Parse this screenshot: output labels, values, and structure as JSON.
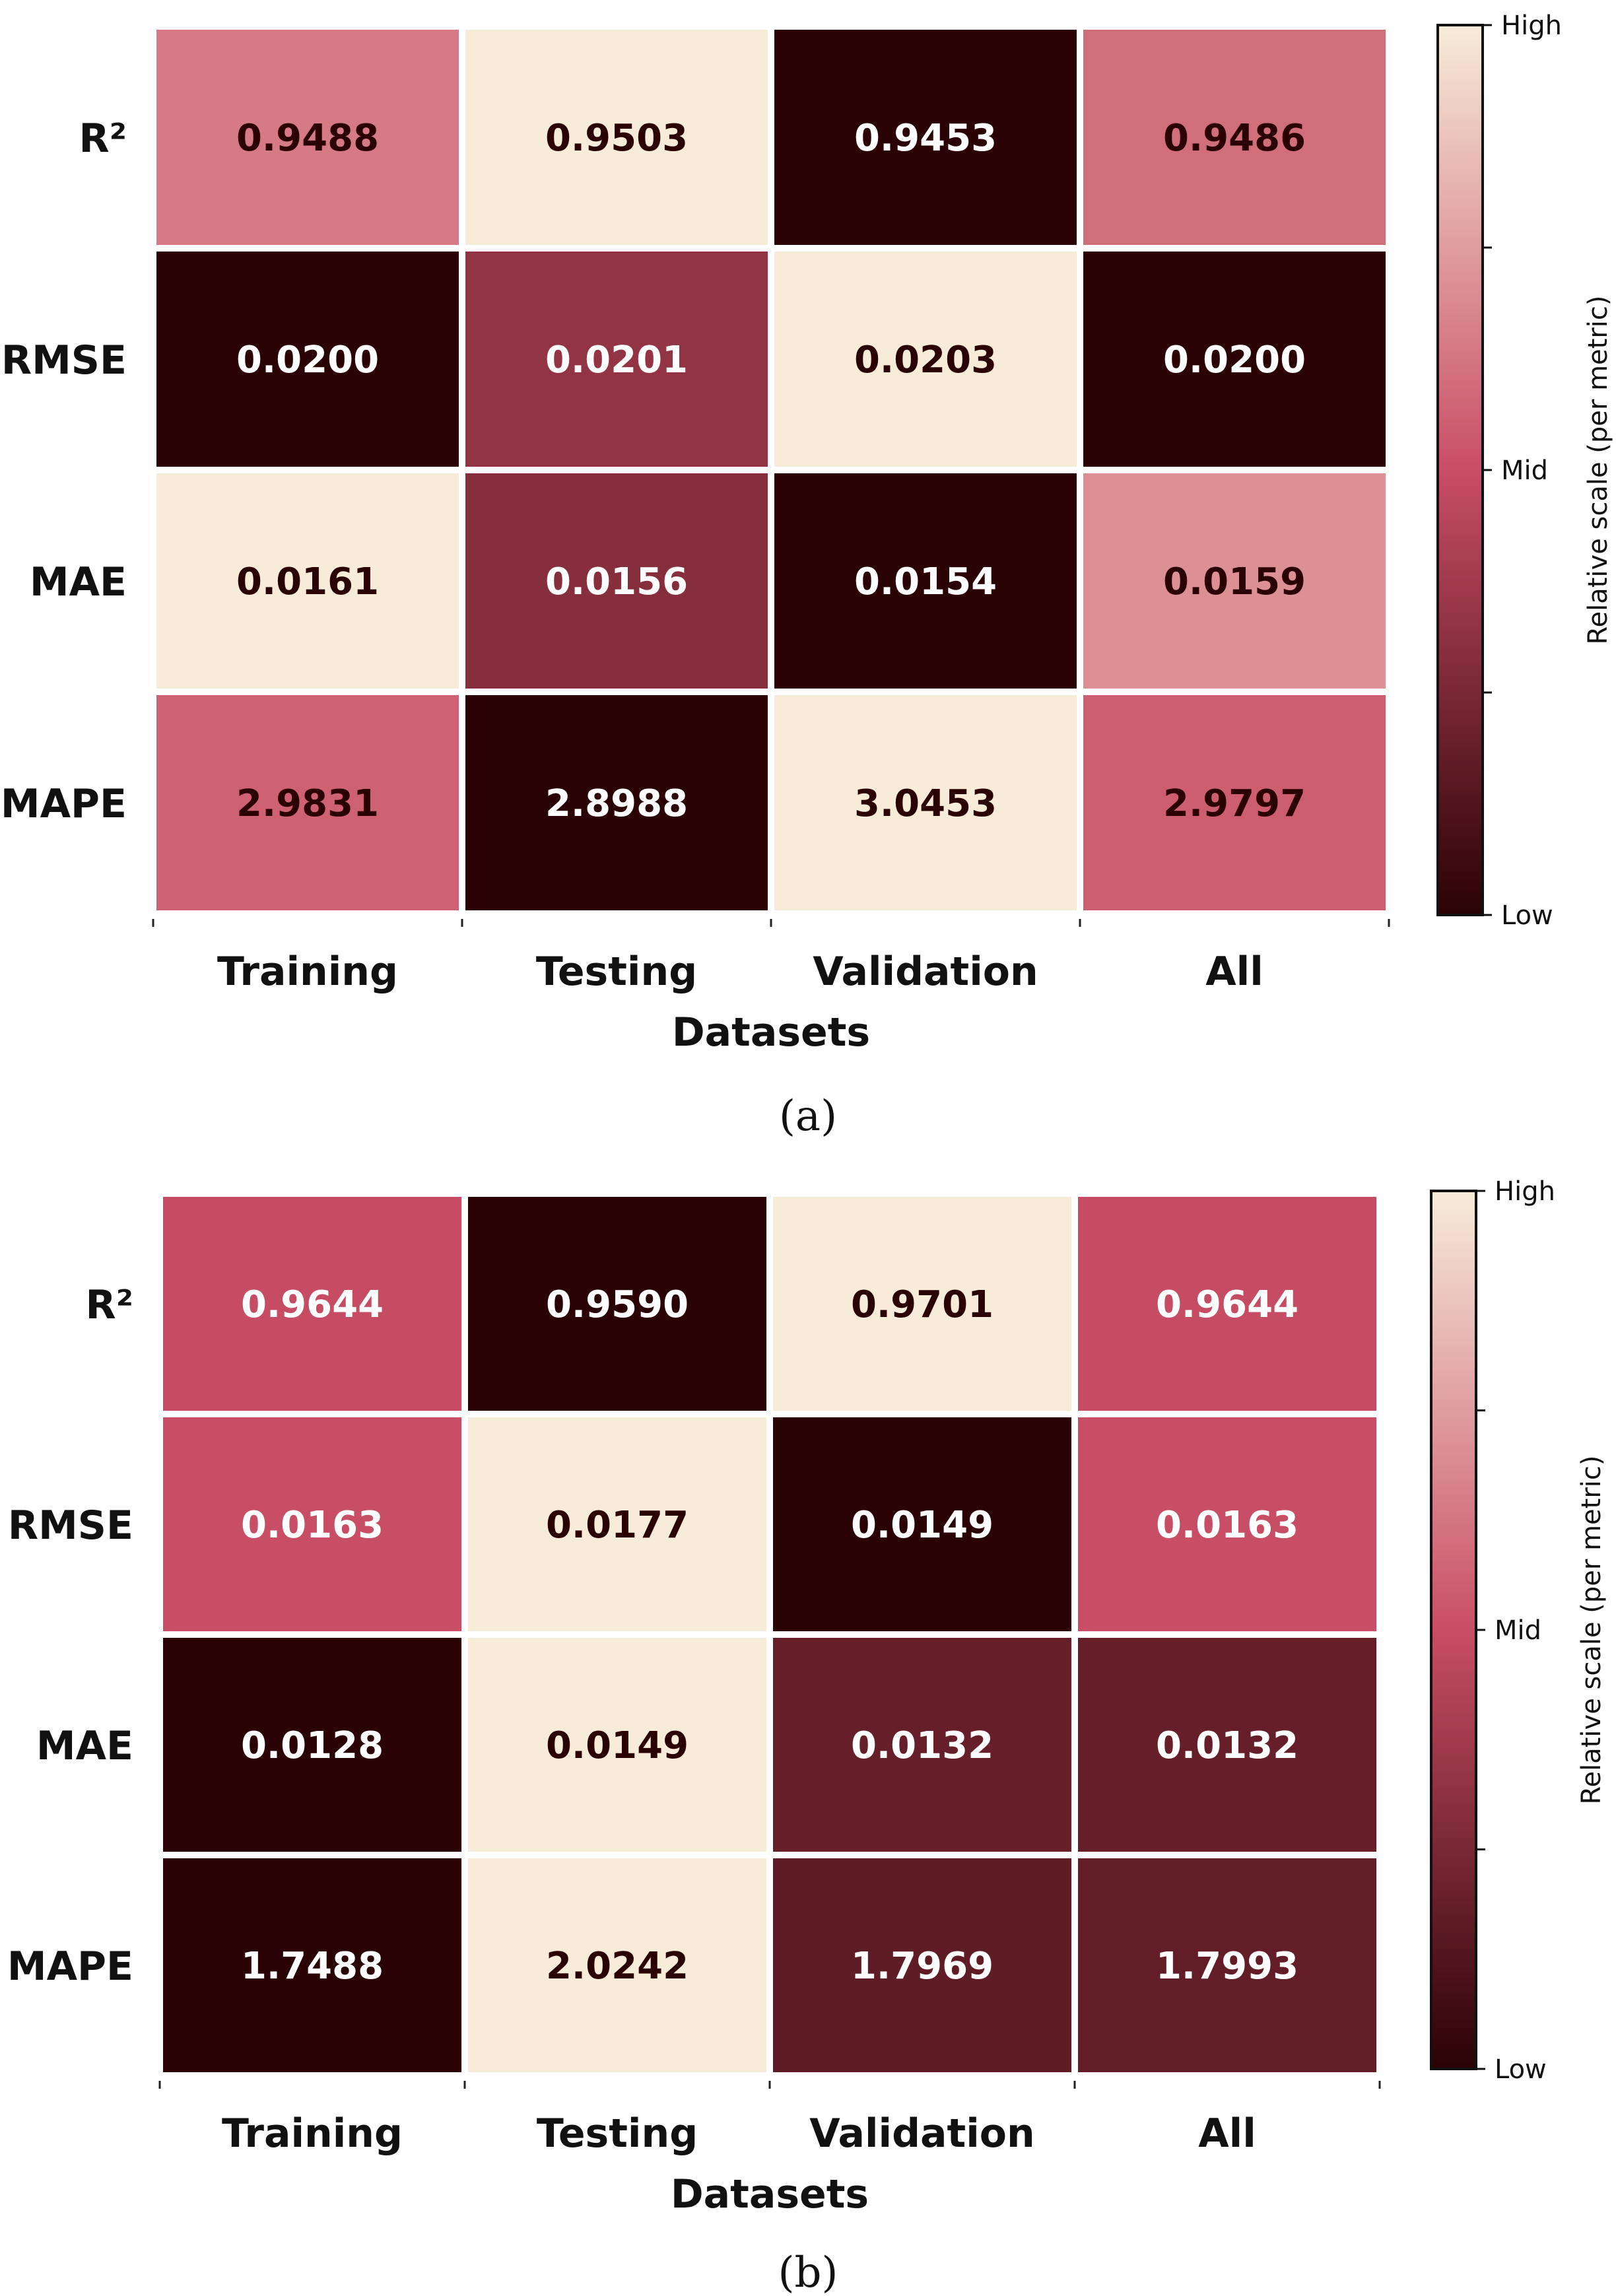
{
  "chart_data": [
    {
      "type": "heatmap",
      "panel_label": "(a)",
      "xlabel": "Datasets",
      "ylabel": "",
      "x_categories": [
        "Training",
        "Testing",
        "Validation",
        "All"
      ],
      "y_categories": [
        "R²",
        "RMSE",
        "MAE",
        "MAPE"
      ],
      "values": [
        [
          "0.9488",
          "0.9503",
          "0.9453",
          "0.9486"
        ],
        [
          "0.0200",
          "0.0201",
          "0.0203",
          "0.0200"
        ],
        [
          "0.0161",
          "0.0156",
          "0.0154",
          "0.0159"
        ],
        [
          "2.9831",
          "2.8988",
          "3.0453",
          "2.9797"
        ]
      ],
      "relative_scale": [
        [
          0.64,
          1.0,
          0.0,
          0.6
        ],
        [
          0.0,
          0.33,
          1.0,
          0.0
        ],
        [
          1.0,
          0.29,
          0.0,
          0.71
        ],
        [
          0.56,
          0.0,
          1.0,
          0.55
        ]
      ],
      "colorbar": {
        "label": "Relative scale (per metric)",
        "ticks": [
          "Low",
          "Mid",
          "High"
        ],
        "colors": [
          "#2a0204",
          "#c84e65",
          "#f7ecda"
        ]
      },
      "grid": true,
      "legend": "colorbar-right"
    },
    {
      "type": "heatmap",
      "panel_label": "(b)",
      "xlabel": "Datasets",
      "ylabel": "",
      "x_categories": [
        "Training",
        "Testing",
        "Validation",
        "All"
      ],
      "y_categories": [
        "R²",
        "RMSE",
        "MAE",
        "MAPE"
      ],
      "values": [
        [
          "0.9644",
          "0.9590",
          "0.9701",
          "0.9644"
        ],
        [
          "0.0163",
          "0.0177",
          "0.0149",
          "0.0163"
        ],
        [
          "0.0128",
          "0.0149",
          "0.0132",
          "0.0132"
        ],
        [
          "1.7488",
          "2.0242",
          "1.7969",
          "1.7993"
        ]
      ],
      "relative_scale": [
        [
          0.49,
          0.0,
          1.0,
          0.49
        ],
        [
          0.5,
          1.0,
          0.0,
          0.5
        ],
        [
          0.0,
          1.0,
          0.19,
          0.19
        ],
        [
          0.0,
          1.0,
          0.17,
          0.18
        ]
      ],
      "colorbar": {
        "label": "Relative scale (per metric)",
        "ticks": [
          "Low",
          "Mid",
          "High"
        ],
        "colors": [
          "#2a0204",
          "#c84e65",
          "#f7ecda"
        ]
      },
      "grid": true,
      "legend": "colorbar-right"
    }
  ]
}
